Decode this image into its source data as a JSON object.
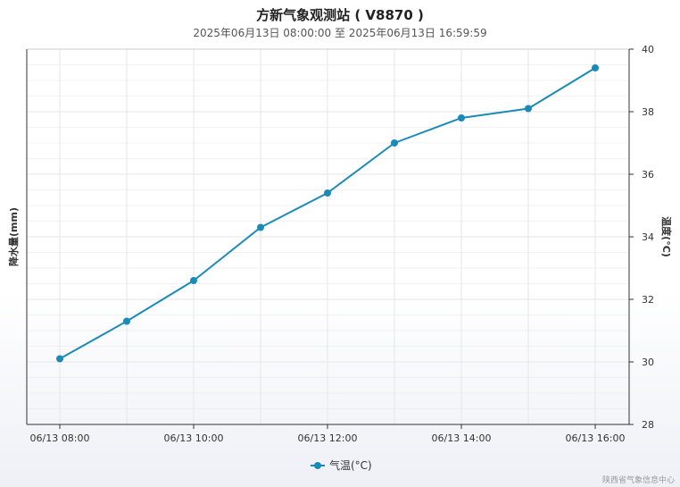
{
  "header": {
    "title": "方新气象观测站 ( V8870 )",
    "subtitle": "2025年06月13日 08:00:00 至 2025年06月13日 16:59:59"
  },
  "credit": "陕西省气象信息中心",
  "colors": {
    "series": "#1a8bb9",
    "grid": "#e6e6e6",
    "axis": "#333333"
  },
  "chart_data": {
    "type": "line",
    "title": "方新气象观测站 ( V8870 )",
    "subtitle": "2025年06月13日 08:00:00 至 2025年06月13日 16:59:59",
    "y_left_label": "降水量(mm)",
    "y_right_label": "温度(°C)",
    "y_right_range": [
      28,
      40
    ],
    "y_right_ticks": [
      "28",
      "30",
      "32",
      "34",
      "36",
      "38",
      "40"
    ],
    "x_tick_labels": [
      "06/13 08:00",
      "06/13 10:00",
      "06/13 12:00",
      "06/13 14:00",
      "06/13 16:00"
    ],
    "x": [
      "06/13 08:00",
      "06/13 09:00",
      "06/13 10:00",
      "06/13 11:00",
      "06/13 12:00",
      "06/13 13:00",
      "06/13 14:00",
      "06/13 15:00",
      "06/13 16:00"
    ],
    "series": [
      {
        "name": "气温(°C)",
        "axis": "right",
        "values": [
          30.1,
          31.3,
          32.6,
          34.3,
          35.4,
          37.0,
          37.8,
          38.1,
          39.4
        ]
      }
    ],
    "grid": true,
    "legend_position": "bottom-center"
  }
}
